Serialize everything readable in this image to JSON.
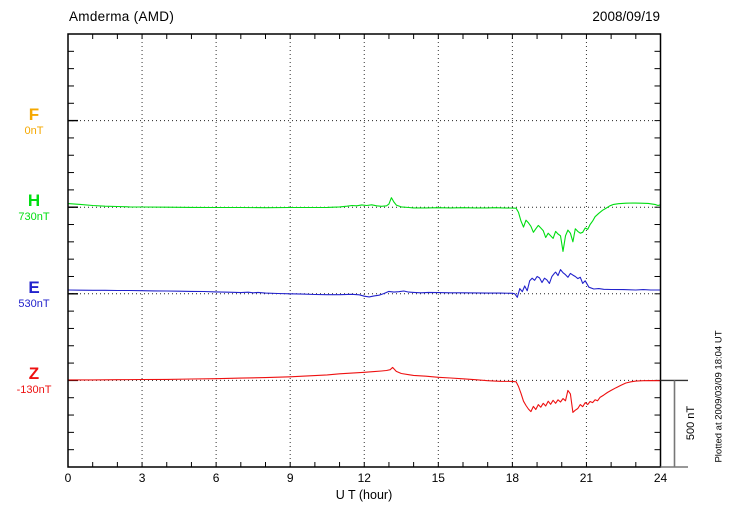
{
  "header": {
    "title": "Amderma (AMD)",
    "date": "2008/09/19"
  },
  "footer_note": "Plotted at 2009/03/09 18:04 UT",
  "chart_data": {
    "type": "line",
    "title": "Amderma (AMD)",
    "date": "2008/09/19",
    "xlabel": "U T (hour)",
    "x_range": [
      0,
      24
    ],
    "x_ticks": [
      0,
      3,
      6,
      9,
      12,
      15,
      18,
      21,
      24
    ],
    "x_minor_tick_step_hours": 1,
    "y_tick_step_nT": 100,
    "y_channel_spacing_nT": 500,
    "grid": "dotted vertical lines every 3 h; dotted horizontal line at each channel baseline",
    "legend_position": "left margin channel labels",
    "scale_bar": {
      "label": "500 nT",
      "nT": 500
    },
    "footer": "Plotted at 2009/03/09 18:04 UT",
    "axis_color": "#000000",
    "background": "#ffffff",
    "channels": [
      {
        "name": "F",
        "base_label": "0nT",
        "baseline_nT": 0,
        "color": "#f5a800",
        "series": []
      },
      {
        "name": "H",
        "base_label": "730nT",
        "baseline_nT": 730,
        "color": "#00dd11",
        "series": [
          [
            0,
            21
          ],
          [
            0.5,
            16
          ],
          [
            1,
            10
          ],
          [
            1.5,
            6
          ],
          [
            2,
            4
          ],
          [
            2.5,
            2
          ],
          [
            3,
            1
          ],
          [
            4,
            0
          ],
          [
            5,
            -1
          ],
          [
            6,
            -2
          ],
          [
            7,
            -2
          ],
          [
            8,
            -3
          ],
          [
            9,
            -2
          ],
          [
            10,
            -2
          ],
          [
            10.5,
            -1
          ],
          [
            11,
            2
          ],
          [
            11.3,
            6
          ],
          [
            11.5,
            10
          ],
          [
            11.7,
            8
          ],
          [
            11.9,
            13
          ],
          [
            12.1,
            10
          ],
          [
            12.3,
            14
          ],
          [
            12.5,
            8
          ],
          [
            12.7,
            5
          ],
          [
            12.9,
            8
          ],
          [
            13,
            18
          ],
          [
            13.1,
            55
          ],
          [
            13.2,
            30
          ],
          [
            13.3,
            12
          ],
          [
            13.5,
            2
          ],
          [
            13.8,
            -2
          ],
          [
            14,
            -4
          ],
          [
            14.5,
            -4
          ],
          [
            15,
            -3
          ],
          [
            15.5,
            -4
          ],
          [
            16,
            -3
          ],
          [
            16.5,
            -4
          ],
          [
            17,
            -4
          ],
          [
            17.3,
            -3
          ],
          [
            17.6,
            -4
          ],
          [
            18,
            -5
          ],
          [
            18.15,
            -6
          ],
          [
            18.25,
            -30
          ],
          [
            18.35,
            -80
          ],
          [
            18.45,
            -115
          ],
          [
            18.55,
            -75
          ],
          [
            18.65,
            -90
          ],
          [
            18.75,
            -110
          ],
          [
            18.85,
            -145
          ],
          [
            18.95,
            -125
          ],
          [
            19.05,
            -105
          ],
          [
            19.15,
            -120
          ],
          [
            19.25,
            -135
          ],
          [
            19.35,
            -175
          ],
          [
            19.45,
            -150
          ],
          [
            19.55,
            -165
          ],
          [
            19.65,
            -180
          ],
          [
            19.75,
            -140
          ],
          [
            19.85,
            -155
          ],
          [
            19.95,
            -165
          ],
          [
            20.05,
            -255
          ],
          [
            20.15,
            -165
          ],
          [
            20.25,
            -132
          ],
          [
            20.35,
            -150
          ],
          [
            20.45,
            -200
          ],
          [
            20.55,
            -125
          ],
          [
            20.65,
            -140
          ],
          [
            20.75,
            -150
          ],
          [
            20.85,
            -145
          ],
          [
            20.95,
            -120
          ],
          [
            21.05,
            -128
          ],
          [
            21.15,
            -100
          ],
          [
            21.25,
            -80
          ],
          [
            21.35,
            -55
          ],
          [
            21.5,
            -35
          ],
          [
            21.65,
            -18
          ],
          [
            21.8,
            -5
          ],
          [
            21.95,
            8
          ],
          [
            22.1,
            16
          ],
          [
            22.3,
            20
          ],
          [
            22.6,
            23
          ],
          [
            22.9,
            24
          ],
          [
            23.2,
            23
          ],
          [
            23.5,
            22
          ],
          [
            23.8,
            15
          ],
          [
            23.9,
            10
          ],
          [
            24,
            14
          ]
        ]
      },
      {
        "name": "E",
        "base_label": "530nT",
        "baseline_nT": 530,
        "color": "#2222cc",
        "series": [
          [
            0,
            22
          ],
          [
            0.5,
            21
          ],
          [
            1,
            20
          ],
          [
            1.5,
            20
          ],
          [
            2,
            19
          ],
          [
            2.5,
            19
          ],
          [
            3,
            18
          ],
          [
            3.5,
            17
          ],
          [
            4,
            16
          ],
          [
            4.5,
            15
          ],
          [
            5,
            14
          ],
          [
            5.5,
            13
          ],
          [
            6,
            11
          ],
          [
            6.5,
            9
          ],
          [
            7,
            7
          ],
          [
            7.3,
            9
          ],
          [
            7.5,
            6
          ],
          [
            7.7,
            8
          ],
          [
            8,
            4
          ],
          [
            8.5,
            2
          ],
          [
            9,
            0
          ],
          [
            9.5,
            -2
          ],
          [
            10,
            -4
          ],
          [
            10.5,
            -5
          ],
          [
            11,
            -5
          ],
          [
            11.5,
            -3
          ],
          [
            11.8,
            -6
          ],
          [
            12,
            -14
          ],
          [
            12.2,
            -18
          ],
          [
            12.4,
            -12
          ],
          [
            12.6,
            -8
          ],
          [
            12.8,
            2
          ],
          [
            13,
            14
          ],
          [
            13.2,
            10
          ],
          [
            13.4,
            12
          ],
          [
            13.6,
            16
          ],
          [
            13.8,
            10
          ],
          [
            14,
            8
          ],
          [
            14.3,
            6
          ],
          [
            14.6,
            8
          ],
          [
            15,
            7
          ],
          [
            15.5,
            6
          ],
          [
            16,
            6
          ],
          [
            16.5,
            5
          ],
          [
            17,
            4
          ],
          [
            17.5,
            4
          ],
          [
            18,
            3
          ],
          [
            18.1,
            0
          ],
          [
            18.2,
            -20
          ],
          [
            18.3,
            30
          ],
          [
            18.4,
            12
          ],
          [
            18.5,
            45
          ],
          [
            18.6,
            18
          ],
          [
            18.7,
            75
          ],
          [
            18.8,
            90
          ],
          [
            18.9,
            78
          ],
          [
            19,
            100
          ],
          [
            19.1,
            92
          ],
          [
            19.2,
            65
          ],
          [
            19.3,
            90
          ],
          [
            19.4,
            80
          ],
          [
            19.5,
            60
          ],
          [
            19.6,
            100
          ],
          [
            19.7,
            118
          ],
          [
            19.75,
            125
          ],
          [
            19.85,
            105
          ],
          [
            19.95,
            140
          ],
          [
            20.05,
            122
          ],
          [
            20.15,
            110
          ],
          [
            20.25,
            95
          ],
          [
            20.35,
            118
          ],
          [
            20.45,
            108
          ],
          [
            20.55,
            100
          ],
          [
            20.65,
            88
          ],
          [
            20.75,
            95
          ],
          [
            20.85,
            60
          ],
          [
            20.95,
            75
          ],
          [
            21.1,
            38
          ],
          [
            21.3,
            28
          ],
          [
            21.5,
            30
          ],
          [
            21.7,
            26
          ],
          [
            22,
            25
          ],
          [
            22.5,
            24
          ],
          [
            23,
            22
          ],
          [
            23.3,
            24
          ],
          [
            23.6,
            22
          ],
          [
            24,
            22
          ]
        ]
      },
      {
        "name": "Z",
        "base_label": "-130nT",
        "baseline_nT": -130,
        "color": "#ee1111",
        "series": [
          [
            0,
            3
          ],
          [
            1,
            3
          ],
          [
            2,
            4
          ],
          [
            3,
            5
          ],
          [
            4,
            6
          ],
          [
            5,
            8
          ],
          [
            6,
            10
          ],
          [
            7,
            13
          ],
          [
            8,
            16
          ],
          [
            9,
            21
          ],
          [
            9.5,
            24
          ],
          [
            10,
            28
          ],
          [
            10.5,
            32
          ],
          [
            11,
            38
          ],
          [
            11.5,
            42
          ],
          [
            12,
            47
          ],
          [
            12.4,
            51
          ],
          [
            12.7,
            54
          ],
          [
            12.9,
            57
          ],
          [
            13.05,
            62
          ],
          [
            13.15,
            75
          ],
          [
            13.3,
            52
          ],
          [
            13.5,
            40
          ],
          [
            13.8,
            33
          ],
          [
            14,
            29
          ],
          [
            14.5,
            24
          ],
          [
            15,
            18
          ],
          [
            15.5,
            14
          ],
          [
            16,
            9
          ],
          [
            16.5,
            4
          ],
          [
            17,
            -2
          ],
          [
            17.5,
            -5
          ],
          [
            18,
            -6
          ],
          [
            18.15,
            -8
          ],
          [
            18.25,
            -35
          ],
          [
            18.35,
            -75
          ],
          [
            18.45,
            -120
          ],
          [
            18.55,
            -145
          ],
          [
            18.65,
            -165
          ],
          [
            18.75,
            -180
          ],
          [
            18.85,
            -150
          ],
          [
            18.95,
            -168
          ],
          [
            19.05,
            -140
          ],
          [
            19.15,
            -155
          ],
          [
            19.25,
            -132
          ],
          [
            19.35,
            -148
          ],
          [
            19.45,
            -120
          ],
          [
            19.55,
            -138
          ],
          [
            19.65,
            -115
          ],
          [
            19.75,
            -132
          ],
          [
            19.85,
            -112
          ],
          [
            19.95,
            -125
          ],
          [
            20.05,
            -105
          ],
          [
            20.15,
            -118
          ],
          [
            20.25,
            -58
          ],
          [
            20.35,
            -78
          ],
          [
            20.45,
            -185
          ],
          [
            20.55,
            -172
          ],
          [
            20.65,
            -162
          ],
          [
            20.75,
            -140
          ],
          [
            20.85,
            -152
          ],
          [
            20.95,
            -128
          ],
          [
            21.05,
            -140
          ],
          [
            21.15,
            -122
          ],
          [
            21.25,
            -128
          ],
          [
            21.35,
            -112
          ],
          [
            21.45,
            -118
          ],
          [
            21.55,
            -98
          ],
          [
            21.7,
            -85
          ],
          [
            21.85,
            -70
          ],
          [
            22,
            -58
          ],
          [
            22.2,
            -42
          ],
          [
            22.4,
            -28
          ],
          [
            22.6,
            -15
          ],
          [
            22.8,
            -8
          ],
          [
            23,
            -4
          ],
          [
            23.3,
            -2
          ],
          [
            23.6,
            -1
          ],
          [
            24,
            -2
          ]
        ]
      }
    ]
  }
}
